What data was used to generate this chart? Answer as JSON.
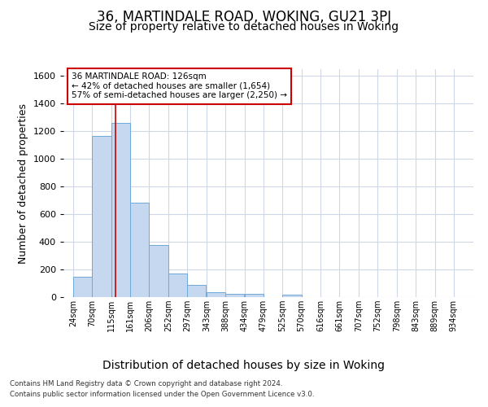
{
  "title": "36, MARTINDALE ROAD, WOKING, GU21 3PJ",
  "subtitle": "Size of property relative to detached houses in Woking",
  "xlabel": "Distribution of detached houses by size in Woking",
  "ylabel": "Number of detached properties",
  "footnote1": "Contains HM Land Registry data © Crown copyright and database right 2024.",
  "footnote2": "Contains public sector information licensed under the Open Government Licence v3.0.",
  "annotation_line1": "36 MARTINDALE ROAD: 126sqm",
  "annotation_line2": "← 42% of detached houses are smaller (1,654)",
  "annotation_line3": "57% of semi-detached houses are larger (2,250) →",
  "bar_left_edges": [
    24,
    70,
    115,
    161,
    206,
    252,
    297,
    343,
    388,
    434,
    479,
    525,
    570,
    616,
    661,
    707,
    752,
    798,
    843,
    889
  ],
  "bar_widths": [
    45,
    45,
    45,
    45,
    45,
    45,
    45,
    45,
    45,
    45,
    45,
    45,
    45,
    45,
    45,
    45,
    45,
    45,
    45,
    45
  ],
  "bar_heights": [
    148,
    1168,
    1262,
    685,
    375,
    168,
    88,
    35,
    22,
    22,
    0,
    18,
    0,
    0,
    0,
    0,
    0,
    0,
    0,
    0
  ],
  "bar_color": "#C5D8F0",
  "bar_edge_color": "#6FA8D8",
  "red_line_x": 126,
  "ylim": [
    0,
    1650
  ],
  "yticks": [
    0,
    200,
    400,
    600,
    800,
    1000,
    1200,
    1400,
    1600
  ],
  "xtick_labels": [
    "24sqm",
    "70sqm",
    "115sqm",
    "161sqm",
    "206sqm",
    "252sqm",
    "297sqm",
    "343sqm",
    "388sqm",
    "434sqm",
    "479sqm",
    "525sqm",
    "570sqm",
    "616sqm",
    "661sqm",
    "707sqm",
    "752sqm",
    "798sqm",
    "843sqm",
    "889sqm",
    "934sqm"
  ],
  "xtick_positions": [
    24,
    70,
    115,
    161,
    206,
    252,
    297,
    343,
    388,
    434,
    479,
    525,
    570,
    616,
    661,
    707,
    752,
    798,
    843,
    889,
    934
  ],
  "bg_color": "#FFFFFF",
  "plot_bg_color": "#FFFFFF",
  "title_fontsize": 12,
  "subtitle_fontsize": 10,
  "annotation_box_edge": "#CC0000",
  "red_line_color": "#CC0000",
  "grid_color": "#D0D8E8",
  "ylabel_fontsize": 9,
  "xlabel_fontsize": 10
}
